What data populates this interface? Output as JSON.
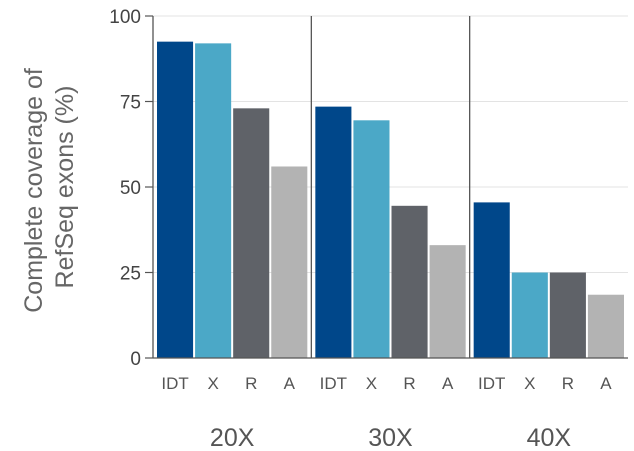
{
  "chart_data": {
    "type": "bar",
    "ylabel_lines": [
      "Complete coverage of",
      "RefSeq exons (%)"
    ],
    "ylim": [
      0,
      100
    ],
    "yticks": [
      0,
      25,
      50,
      75,
      100
    ],
    "grid": true,
    "groups": [
      {
        "label": "20X",
        "bars": [
          {
            "label": "IDT",
            "value": 92.5
          },
          {
            "label": "X",
            "value": 92
          },
          {
            "label": "R",
            "value": 73
          },
          {
            "label": "A",
            "value": 56
          }
        ]
      },
      {
        "label": "30X",
        "bars": [
          {
            "label": "IDT",
            "value": 73.5
          },
          {
            "label": "X",
            "value": 69.5
          },
          {
            "label": "R",
            "value": 44.5
          },
          {
            "label": "A",
            "value": 33
          }
        ]
      },
      {
        "label": "40X",
        "bars": [
          {
            "label": "IDT",
            "value": 45.5
          },
          {
            "label": "X",
            "value": 25
          },
          {
            "label": "R",
            "value": 25
          },
          {
            "label": "A",
            "value": 18.5
          }
        ]
      }
    ],
    "colors": {
      "IDT": "#00478a",
      "X": "#4ba8c7",
      "R": "#5f6268",
      "A": "#b3b3b3"
    }
  }
}
